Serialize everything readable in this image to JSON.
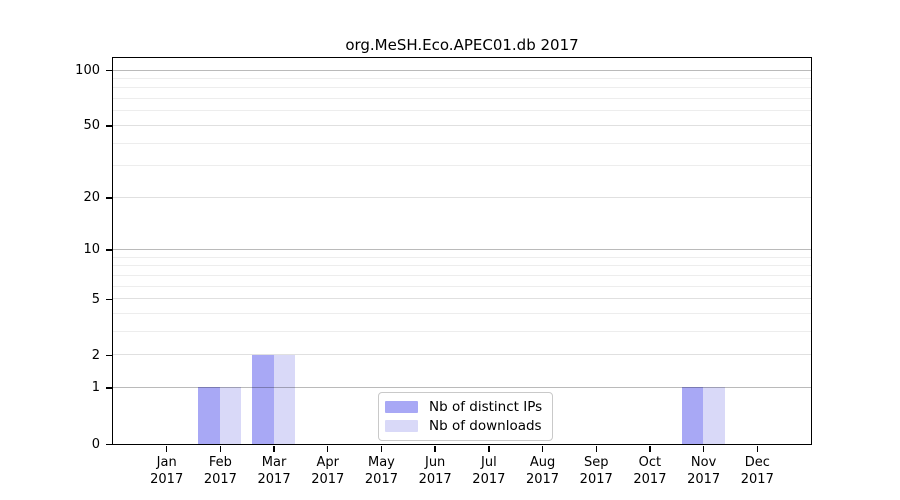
{
  "title": "org.MeSH.Eco.APEC01.db 2017",
  "chart_data": {
    "type": "bar",
    "title": "org.MeSH.Eco.APEC01.db 2017",
    "categories": [
      "Jan",
      "Feb",
      "Mar",
      "Apr",
      "May",
      "Jun",
      "Jul",
      "Aug",
      "Sep",
      "Oct",
      "Nov",
      "Dec"
    ],
    "category_year": "2017",
    "series": [
      {
        "name": "Nb of distinct IPs",
        "color": "#a8a8f5",
        "values": [
          0,
          1,
          2,
          0,
          0,
          0,
          0,
          0,
          0,
          0,
          1,
          0
        ]
      },
      {
        "name": "Nb of downloads",
        "color": "#d9d9f8",
        "values": [
          0,
          1,
          2,
          0,
          0,
          0,
          0,
          0,
          0,
          0,
          1,
          0
        ]
      }
    ],
    "xlabel": "",
    "ylabel": "",
    "y_scale": "log1p",
    "y_tick_labels": [
      0,
      1,
      2,
      5,
      10,
      20,
      50,
      100
    ],
    "y_gridlines_strong": [
      1,
      10,
      100
    ],
    "y_gridlines_medium": [
      2,
      5,
      20,
      50
    ],
    "y_gridlines_minor": [
      3,
      4,
      6,
      7,
      8,
      9,
      30,
      40,
      60,
      70,
      80,
      90
    ],
    "ylim": [
      0,
      117
    ],
    "grid": true,
    "legend_position": "bottom-center",
    "legend_entries": [
      "Nb of distinct IPs",
      "Nb of downloads"
    ]
  },
  "colors": {
    "series_ips": "#a8a8f5",
    "series_downloads": "#d9d9f8",
    "grid_strong": "rgba(0,0,0,0.27)",
    "grid_medium": "rgba(0,0,0,0.12)",
    "grid_minor": "rgba(0,0,0,0.07)",
    "axis": "#000000",
    "legend_border": "#c9c9c9"
  }
}
